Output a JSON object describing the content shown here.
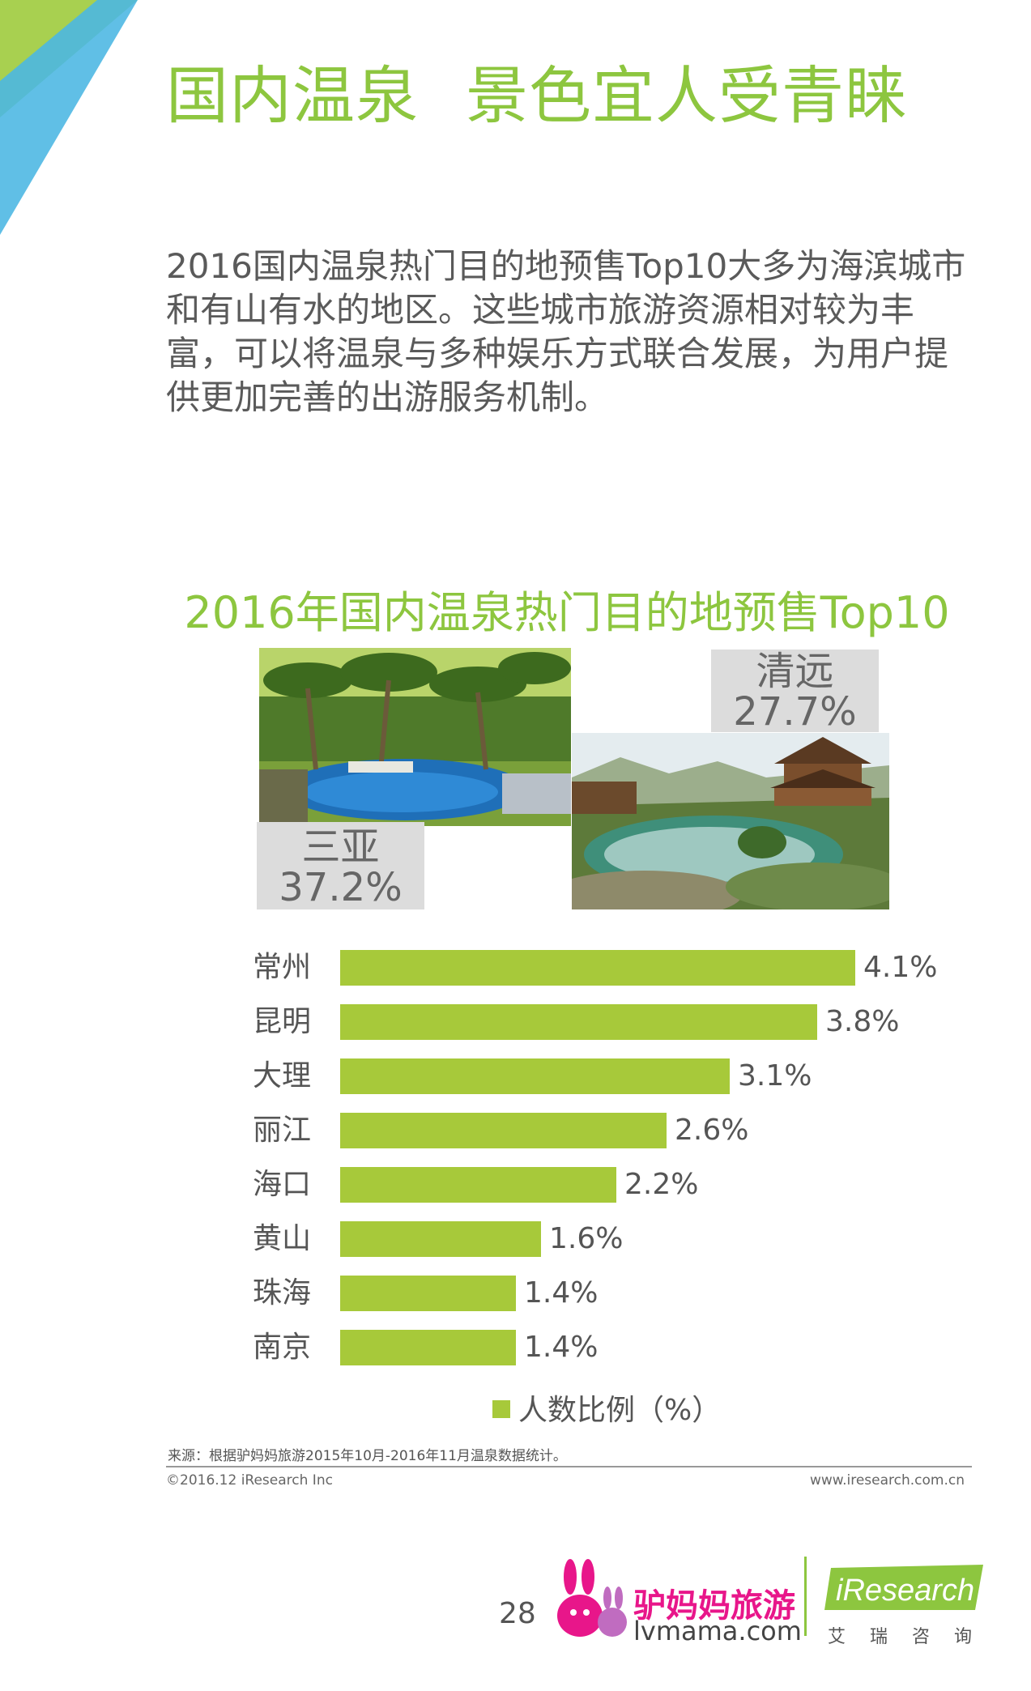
{
  "header": {
    "title_part1": "国内温泉",
    "title_part2": "景色宜人受青睐"
  },
  "intro": {
    "text": "2016国内温泉热门目的地预售Top10大多为海滨城市和有山有水的地区。这些城市旅游资源相对较为丰富，可以将温泉与多种娱乐方式联合发展，为用户提供更加完善的出游服务机制。"
  },
  "chart_data": {
    "type": "bar",
    "title": "2016年国内温泉热门目的地预售Top10",
    "callouts": [
      {
        "label": "三亚",
        "value": 37.2,
        "value_text": "37.2%"
      },
      {
        "label": "清远",
        "value": 27.7,
        "value_text": "27.7%"
      }
    ],
    "categories": [
      "常州",
      "昆明",
      "大理",
      "丽江",
      "海口",
      "黄山",
      "珠海",
      "南京"
    ],
    "series": [
      {
        "name": "人数比例（%）",
        "values": [
          4.1,
          3.8,
          3.1,
          2.6,
          2.2,
          1.6,
          1.4,
          1.4
        ],
        "value_labels": [
          "4.1%",
          "3.8%",
          "3.1%",
          "2.6%",
          "2.2%",
          "1.6%",
          "1.4%",
          "1.4%"
        ]
      }
    ],
    "orientation": "horizontal",
    "xlim": [
      0,
      4.1
    ],
    "grid": false,
    "legend_position": "bottom-center",
    "bar_color": "#a7c93a"
  },
  "colors": {
    "title_green": "#8dc63f",
    "bar_green": "#a7c93a",
    "callout_gray": "#dcdcdc",
    "brand_pink": "#e8168a"
  },
  "footer": {
    "source": "来源：根据驴妈妈旅游2015年10月-2016年11月温泉数据统计。",
    "copyright": "©2016.12 iResearch Inc",
    "website": "www.iresearch.com.cn",
    "page_number": "28"
  },
  "logos": {
    "lvmama_name": "驴妈妈旅游",
    "lvmama_domain": "lvmama.com",
    "iresearch_name": "iResearch",
    "iresearch_cn": "艾瑞咨询"
  }
}
